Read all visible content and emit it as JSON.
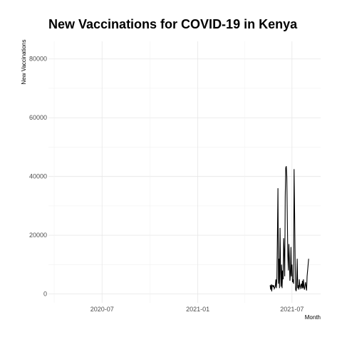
{
  "chart_data": {
    "type": "line",
    "title": "New Vaccinations for COVID-19 in Kenya",
    "xlabel": "Month",
    "ylabel": "New Vaccinations",
    "x_ticks": [
      "2020-07",
      "2021-01",
      "2021-07"
    ],
    "y_ticks": [
      "0",
      "20000",
      "40000",
      "60000",
      "80000"
    ],
    "xlim": [
      "2020-03-20",
      "2021-08-25"
    ],
    "ylim": [
      -3000,
      86000
    ],
    "grid": true,
    "series_color": "#000000",
    "series": [
      {
        "x": [
          "2021-05-20",
          "2021-05-21",
          "2021-05-22",
          "2021-05-23",
          "2021-05-24",
          "2021-05-25",
          "2021-05-26",
          "2021-05-27",
          "2021-05-28",
          "2021-05-29",
          "2021-05-30",
          "2021-05-31",
          "2021-06-01",
          "2021-06-02",
          "2021-06-03",
          "2021-06-04",
          "2021-06-05",
          "2021-06-06",
          "2021-06-07",
          "2021-06-08",
          "2021-06-09",
          "2021-06-10",
          "2021-06-11",
          "2021-06-12",
          "2021-06-13",
          "2021-06-14",
          "2021-06-15",
          "2021-06-16",
          "2021-06-17",
          "2021-06-18",
          "2021-06-19",
          "2021-06-20",
          "2021-06-21",
          "2021-06-22",
          "2021-06-23",
          "2021-06-24",
          "2021-06-25",
          "2021-06-26",
          "2021-06-27",
          "2021-06-28",
          "2021-06-29",
          "2021-06-30",
          "2021-07-01",
          "2021-07-02",
          "2021-07-03",
          "2021-07-04",
          "2021-07-05",
          "2021-07-06",
          "2021-07-07",
          "2021-07-08",
          "2021-07-09",
          "2021-07-10",
          "2021-07-11",
          "2021-07-12",
          "2021-07-13",
          "2021-07-14",
          "2021-07-15",
          "2021-07-16",
          "2021-07-17",
          "2021-07-18",
          "2021-07-19",
          "2021-07-20",
          "2021-07-21",
          "2021-07-22",
          "2021-07-23",
          "2021-07-24",
          "2021-07-25",
          "2021-07-26",
          "2021-07-27",
          "2021-07-28",
          "2021-07-29",
          "2021-07-30",
          "2021-07-31",
          "2021-08-01",
          "2021-08-02"
        ],
        "y": [
          3000,
          1500,
          3200,
          900,
          3000,
          2800,
          2500,
          3000,
          1800,
          2200,
          2600,
          5000,
          2000,
          5500,
          20000,
          36000,
          3500,
          12000,
          2000,
          22500,
          8000,
          2500,
          10000,
          2000,
          8000,
          5000,
          19000,
          14000,
          6000,
          33000,
          43000,
          43500,
          40000,
          26000,
          13000,
          8000,
          17000,
          12000,
          4500,
          7000,
          16000,
          6000,
          10000,
          4000,
          5000,
          3500,
          42500,
          28000,
          12000,
          1500,
          1000,
          3000,
          12000,
          2000,
          3000,
          1500,
          5000,
          2500,
          2000,
          3000,
          3500,
          1800,
          4500,
          2000,
          5000,
          2200,
          1500,
          3000,
          4000,
          2500,
          1200,
          6000,
          8000,
          10000,
          12000
        ]
      }
    ]
  }
}
